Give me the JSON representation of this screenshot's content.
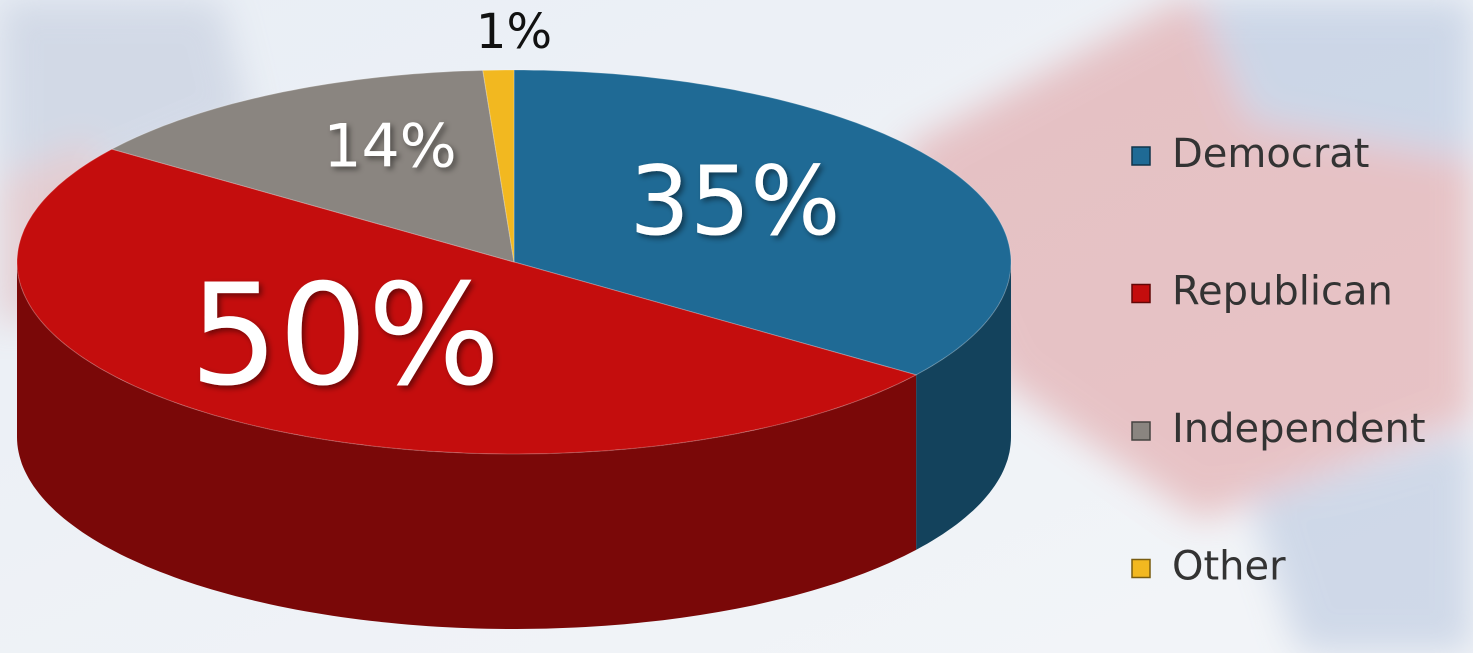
{
  "chart_data": {
    "type": "pie",
    "categories": [
      "Democrat",
      "Republican",
      "Independent",
      "Other"
    ],
    "values": [
      35,
      50,
      14,
      1
    ],
    "value_labels": [
      "35%",
      "50%",
      "14%",
      "1%"
    ],
    "colors": [
      "#1f6a95",
      "#c40d0d",
      "#8a8580",
      "#f2b820"
    ],
    "legend": "right"
  }
}
